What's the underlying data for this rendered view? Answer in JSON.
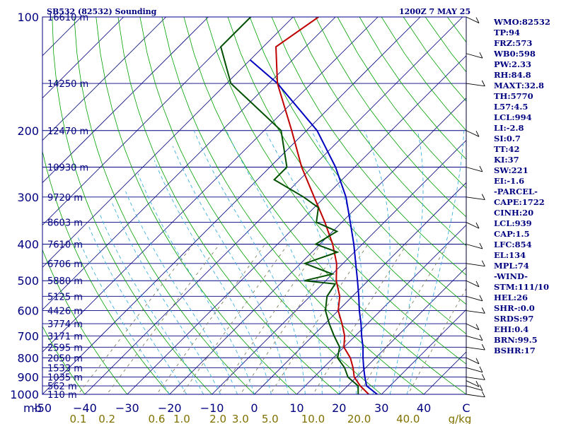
{
  "header": {
    "left": "SB532 (82532) Sounding",
    "right": "1200Z  7 MAY 25"
  },
  "indices": [
    "WMO:82532",
    "TP:94",
    "FRZ:573",
    "WB0:598",
    "PW:2.33",
    "RH:84.8",
    "MAXT:32.8",
    "TH:5770",
    "L57:4.5",
    "LCL:994",
    "LI:-2.8",
    "SI:0.7",
    "TT:42",
    "KI:37",
    "SW:221",
    "EI:-1.6",
    "-PARCEL-",
    "CAPE:1722",
    "CINH:20",
    "LCL:939",
    "CAP:1.5",
    "LFC:854",
    "EL:134",
    "MPL:74",
    "-WIND-",
    "STM:111/10",
    "HEL:26",
    "SHR-:0.0",
    "SRDS:97",
    "EHI:0.4",
    "BRN:99.5",
    "BSHR:17"
  ],
  "colors": {
    "frame": "#000080",
    "isotherm": "#000080",
    "dry_adiabat": "#00a000",
    "moist_adiabat": "#40b0e0",
    "mixing_ratio": "#808060",
    "temperature": "#c00000",
    "dewpoint": "#005000",
    "parcel": "#0000c0",
    "wind": "#000000"
  },
  "chart_data": {
    "type": "skew-t log-p sounding",
    "pressure_axis": {
      "label": "mb",
      "range": [
        100,
        1000
      ],
      "scale": "log",
      "ticks": [
        100,
        200,
        300,
        400,
        500,
        600,
        700,
        800,
        900,
        1000
      ]
    },
    "height_levels": [
      {
        "p": 100,
        "label": "16610 m"
      },
      {
        "p": 150,
        "label": "14250 m"
      },
      {
        "p": 200,
        "label": "12470 m"
      },
      {
        "p": 250,
        "label": "10930 m"
      },
      {
        "p": 300,
        "label": "9720 m"
      },
      {
        "p": 350,
        "label": "8603 m"
      },
      {
        "p": 400,
        "label": "7610 m"
      },
      {
        "p": 450,
        "label": "6706 m"
      },
      {
        "p": 500,
        "label": "5880 m"
      },
      {
        "p": 550,
        "label": "5125 m"
      },
      {
        "p": 600,
        "label": "4426 m"
      },
      {
        "p": 650,
        "label": "3774 m"
      },
      {
        "p": 700,
        "label": "3171 m"
      },
      {
        "p": 750,
        "label": "2595 m"
      },
      {
        "p": 800,
        "label": "2050 m"
      },
      {
        "p": 850,
        "label": "1533 m"
      },
      {
        "p": 900,
        "label": "1035 m"
      },
      {
        "p": 950,
        "label": "562 m"
      },
      {
        "p": 1000,
        "label": "110 m"
      }
    ],
    "temperature_axis": {
      "unit": "C",
      "ticks": [
        -50,
        -40,
        -30,
        -20,
        -10,
        0,
        10,
        20,
        30,
        40
      ],
      "tick_labels": [
        "-50",
        "−40",
        "−30",
        "−20",
        "−10",
        "0",
        "10",
        "20",
        "30",
        "40"
      ],
      "range_at_1000mb": [
        -50,
        50
      ]
    },
    "mixing_ratio_axis": {
      "unit": "g/kg",
      "ticks": [
        0.1,
        0.2,
        0.6,
        1.0,
        2.0,
        3.0,
        5.0,
        10.0,
        20.0,
        40.0
      ],
      "tick_labels": [
        "0.1",
        "0.2",
        "0.6",
        "1.0",
        "2.0",
        "3.0",
        "5.0",
        "10.0",
        "20.0",
        "40.0"
      ]
    },
    "temperature_profile": [
      {
        "p": 1000,
        "t": 27.0
      },
      {
        "p": 950,
        "t": 23.0
      },
      {
        "p": 900,
        "t": 19.5
      },
      {
        "p": 850,
        "t": 17.0
      },
      {
        "p": 800,
        "t": 14.0
      },
      {
        "p": 750,
        "t": 10.0
      },
      {
        "p": 700,
        "t": 7.5
      },
      {
        "p": 650,
        "t": 4.0
      },
      {
        "p": 600,
        "t": 0.0
      },
      {
        "p": 550,
        "t": -3.0
      },
      {
        "p": 500,
        "t": -7.5
      },
      {
        "p": 450,
        "t": -11.5
      },
      {
        "p": 400,
        "t": -17.0
      },
      {
        "p": 350,
        "t": -24.0
      },
      {
        "p": 300,
        "t": -32.5
      },
      {
        "p": 250,
        "t": -42.5
      },
      {
        "p": 200,
        "t": -53.5
      },
      {
        "p": 150,
        "t": -68.0
      },
      {
        "p": 120,
        "t": -77.0
      },
      {
        "p": 100,
        "t": -74.0
      }
    ],
    "dewpoint_profile": [
      {
        "p": 1000,
        "t": 24.5
      },
      {
        "p": 950,
        "t": 22.5
      },
      {
        "p": 900,
        "t": 18.0
      },
      {
        "p": 850,
        "t": 15.0
      },
      {
        "p": 800,
        "t": 11.0
      },
      {
        "p": 750,
        "t": 9.0
      },
      {
        "p": 700,
        "t": 5.0
      },
      {
        "p": 650,
        "t": 1.0
      },
      {
        "p": 600,
        "t": -3.0
      },
      {
        "p": 550,
        "t": -6.0
      },
      {
        "p": 510,
        "t": -7.0
      },
      {
        "p": 500,
        "t": -15.0
      },
      {
        "p": 480,
        "t": -10.0
      },
      {
        "p": 450,
        "t": -19.0
      },
      {
        "p": 420,
        "t": -14.0
      },
      {
        "p": 400,
        "t": -21.0
      },
      {
        "p": 370,
        "t": -19.0
      },
      {
        "p": 350,
        "t": -26.0
      },
      {
        "p": 320,
        "t": -29.0
      },
      {
        "p": 300,
        "t": -35.0
      },
      {
        "p": 270,
        "t": -46.0
      },
      {
        "p": 250,
        "t": -46.0
      },
      {
        "p": 200,
        "t": -56.0
      },
      {
        "p": 150,
        "t": -79.0
      },
      {
        "p": 120,
        "t": -90.0
      },
      {
        "p": 100,
        "t": -90.0
      }
    ],
    "parcel_path": [
      {
        "p": 1000,
        "t": 29.0
      },
      {
        "p": 950,
        "t": 24.5
      },
      {
        "p": 900,
        "t": 22.0
      },
      {
        "p": 850,
        "t": 19.5
      },
      {
        "p": 800,
        "t": 17.0
      },
      {
        "p": 750,
        "t": 14.5
      },
      {
        "p": 700,
        "t": 11.5
      },
      {
        "p": 650,
        "t": 8.5
      },
      {
        "p": 600,
        "t": 5.0
      },
      {
        "p": 550,
        "t": 1.5
      },
      {
        "p": 500,
        "t": -2.5
      },
      {
        "p": 450,
        "t": -7.0
      },
      {
        "p": 400,
        "t": -12.0
      },
      {
        "p": 350,
        "t": -18.0
      },
      {
        "p": 300,
        "t": -25.0
      },
      {
        "p": 250,
        "t": -34.5
      },
      {
        "p": 200,
        "t": -47.5
      },
      {
        "p": 150,
        "t": -68.0
      },
      {
        "p": 130,
        "t": -80.0
      }
    ],
    "wind_levels": [
      1000,
      950,
      920,
      900,
      850,
      800,
      750,
      700,
      650,
      600,
      550,
      500,
      450,
      400,
      350,
      300,
      250,
      200,
      150,
      125,
      100
    ],
    "grid": true
  }
}
